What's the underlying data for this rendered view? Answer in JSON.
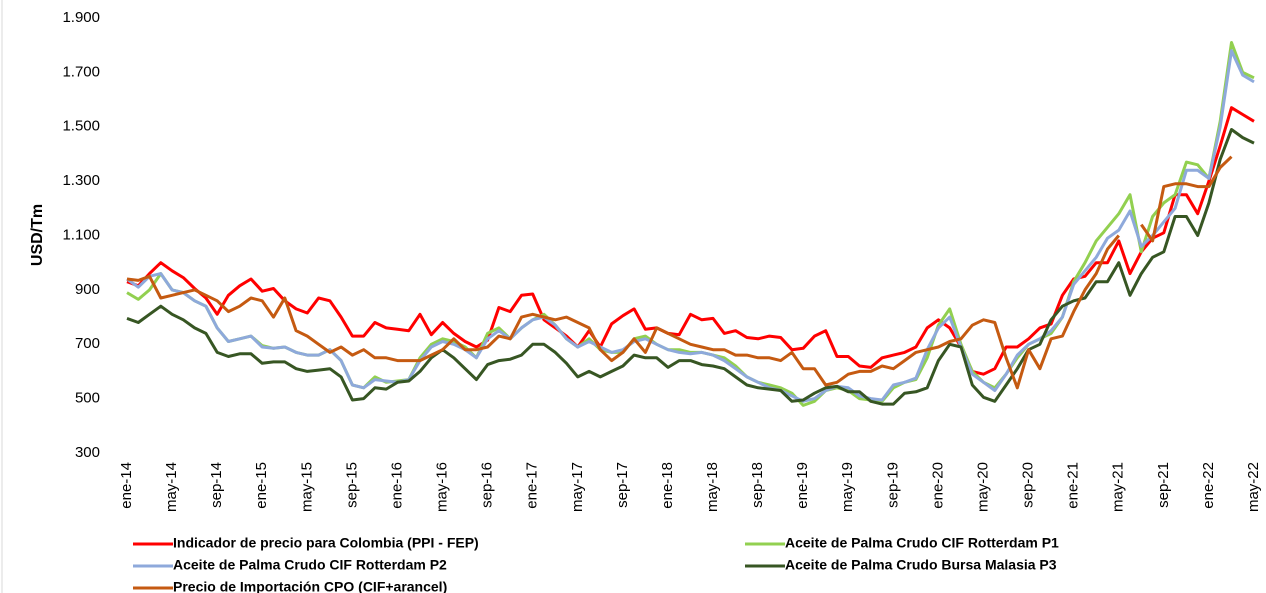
{
  "chart_data": {
    "type": "line",
    "y_label": "USD/Tm",
    "categories": [
      "ene-14",
      null,
      null,
      null,
      "may-14",
      null,
      null,
      null,
      "sep-14",
      null,
      null,
      null,
      "ene-15",
      null,
      null,
      null,
      "may-15",
      null,
      null,
      null,
      "sep-15",
      null,
      null,
      null,
      "ene-16",
      null,
      null,
      null,
      "may-16",
      null,
      null,
      null,
      "sep-16",
      null,
      null,
      null,
      "ene-17",
      null,
      null,
      null,
      "may-17",
      null,
      null,
      null,
      "sep-17",
      null,
      null,
      null,
      "ene-18",
      null,
      null,
      null,
      "may-18",
      null,
      null,
      null,
      "sep-18",
      null,
      null,
      null,
      "ene-19",
      null,
      null,
      null,
      "may-19",
      null,
      null,
      null,
      "sep-19",
      null,
      null,
      null,
      "ene-20",
      null,
      null,
      null,
      "may-20",
      null,
      null,
      null,
      "sep-20",
      null,
      null,
      null,
      "ene-21",
      null,
      null,
      null,
      "may-21",
      null,
      null,
      null,
      "sep-21",
      null,
      null,
      null,
      "ene-22",
      null,
      null,
      null,
      "may-22"
    ],
    "ylim": [
      300,
      1900
    ],
    "yticks": [
      {
        "value": 300,
        "label": "300"
      },
      {
        "value": 500,
        "label": "500"
      },
      {
        "value": 700,
        "label": "700"
      },
      {
        "value": 900,
        "label": "900"
      },
      {
        "value": 1100,
        "label": "1.100"
      },
      {
        "value": 1300,
        "label": "1.300"
      },
      {
        "value": 1500,
        "label": "1.500"
      },
      {
        "value": 1700,
        "label": "1.700"
      },
      {
        "value": 1900,
        "label": "1.900"
      }
    ],
    "grid": false,
    "series": [
      {
        "name": "Indicador de precio para Colombia (PPI - FEP)",
        "color": "#ff0000",
        "values": [
          930,
          915,
          960,
          1000,
          970,
          945,
          905,
          870,
          810,
          880,
          915,
          940,
          895,
          905,
          860,
          830,
          815,
          870,
          860,
          800,
          730,
          730,
          780,
          760,
          755,
          750,
          810,
          735,
          780,
          740,
          710,
          690,
          715,
          835,
          820,
          880,
          885,
          790,
          760,
          730,
          690,
          750,
          690,
          775,
          805,
          830,
          755,
          760,
          740,
          735,
          810,
          790,
          795,
          740,
          750,
          725,
          720,
          730,
          725,
          680,
          685,
          730,
          750,
          655,
          655,
          620,
          615,
          650,
          660,
          670,
          690,
          760,
          790,
          760,
          690,
          600,
          590,
          610,
          690,
          690,
          720,
          760,
          775,
          880,
          940,
          950,
          1000,
          1000,
          1080,
          960,
          1040,
          1090,
          1110,
          1250,
          1250,
          1180,
          1300,
          1430,
          1570,
          1545,
          1520
        ]
      },
      {
        "name": "Aceite de Palma Crudo CIF Rotterdam P1",
        "color": "#92d050",
        "values": [
          890,
          865,
          900,
          960,
          900,
          890,
          860,
          840,
          760,
          710,
          720,
          730,
          695,
          685,
          690,
          670,
          660,
          660,
          680,
          640,
          550,
          540,
          580,
          560,
          565,
          570,
          650,
          700,
          720,
          710,
          690,
          650,
          740,
          760,
          720,
          760,
          790,
          810,
          770,
          720,
          690,
          720,
          680,
          670,
          670,
          720,
          730,
          700,
          680,
          680,
          670,
          670,
          660,
          650,
          620,
          580,
          560,
          550,
          540,
          520,
          475,
          490,
          530,
          540,
          530,
          500,
          495,
          490,
          540,
          560,
          570,
          650,
          770,
          830,
          700,
          600,
          560,
          540,
          590,
          650,
          700,
          720,
          740,
          800,
          930,
          1000,
          1080,
          1130,
          1180,
          1250,
          1040,
          1170,
          1220,
          1250,
          1370,
          1360,
          1310,
          1520,
          1810,
          1700,
          1680
        ]
      },
      {
        "name": "Aceite de Palma Crudo CIF Rotterdam P2",
        "color": "#8ea9db",
        "values": [
          940,
          910,
          950,
          960,
          900,
          890,
          860,
          840,
          760,
          710,
          720,
          730,
          690,
          685,
          690,
          670,
          660,
          660,
          680,
          640,
          550,
          540,
          570,
          565,
          560,
          570,
          640,
          690,
          710,
          700,
          680,
          650,
          720,
          750,
          720,
          760,
          790,
          800,
          770,
          720,
          690,
          710,
          690,
          670,
          680,
          710,
          720,
          700,
          680,
          670,
          665,
          670,
          660,
          640,
          610,
          580,
          560,
          540,
          530,
          510,
          490,
          500,
          530,
          545,
          540,
          510,
          500,
          495,
          550,
          560,
          575,
          680,
          760,
          800,
          690,
          590,
          560,
          530,
          590,
          660,
          700,
          720,
          750,
          800,
          920,
          970,
          1020,
          1090,
          1120,
          1190,
          1060,
          1100,
          1150,
          1200,
          1340,
          1340,
          1310,
          1500,
          1780,
          1690,
          1665
        ]
      },
      {
        "name": "Aceite de Palma Crudo Bursa Malasia P3",
        "color": "#375623",
        "values": [
          795,
          780,
          810,
          840,
          810,
          790,
          760,
          740,
          670,
          655,
          665,
          665,
          630,
          635,
          635,
          610,
          600,
          605,
          610,
          580,
          495,
          500,
          540,
          535,
          560,
          565,
          600,
          650,
          680,
          650,
          610,
          570,
          625,
          640,
          645,
          660,
          700,
          700,
          670,
          630,
          580,
          600,
          580,
          600,
          620,
          660,
          650,
          650,
          615,
          640,
          640,
          625,
          620,
          610,
          580,
          550,
          540,
          535,
          530,
          490,
          495,
          520,
          540,
          545,
          525,
          525,
          490,
          480,
          480,
          520,
          525,
          540,
          640,
          700,
          690,
          550,
          505,
          490,
          550,
          610,
          680,
          700,
          790,
          840,
          860,
          870,
          930,
          930,
          1000,
          880,
          960,
          1020,
          1040,
          1170,
          1170,
          1100,
          1220,
          1380,
          1490,
          1460,
          1440
        ]
      },
      {
        "name": "Precio de Importación CPO (CIF+arancel)",
        "color": "#c55a11",
        "values": [
          940,
          935,
          950,
          870,
          880,
          890,
          900,
          880,
          860,
          820,
          840,
          870,
          860,
          800,
          870,
          750,
          730,
          700,
          670,
          690,
          660,
          680,
          650,
          650,
          640,
          640,
          640,
          660,
          680,
          720,
          680,
          680,
          690,
          730,
          720,
          800,
          810,
          800,
          790,
          800,
          780,
          760,
          680,
          640,
          670,
          720,
          670,
          760,
          740,
          720,
          700,
          690,
          680,
          680,
          660,
          660,
          650,
          650,
          640,
          670,
          610,
          610,
          550,
          560,
          590,
          600,
          600,
          620,
          610,
          640,
          670,
          680,
          690,
          710,
          720,
          770,
          790,
          780,
          650,
          540,
          680,
          610,
          720,
          730,
          820,
          900,
          960,
          1050,
          1100,
          null,
          1140,
          1080,
          1280,
          1290,
          1290,
          1280,
          1280,
          1350,
          1390,
          null,
          null
        ]
      }
    ]
  }
}
